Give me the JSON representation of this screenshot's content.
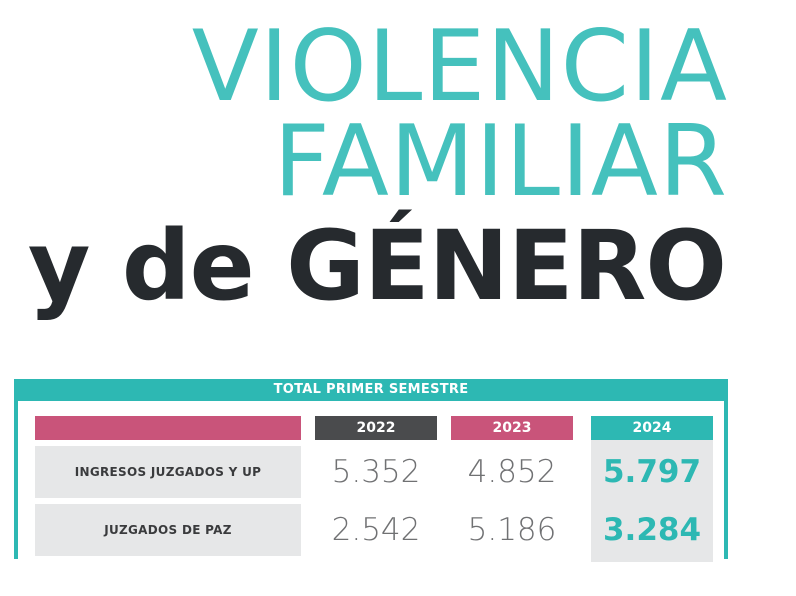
{
  "title": {
    "line1": "VIOLENCIA",
    "line2": "FAMILIAR",
    "line3": "y de GÉNERO"
  },
  "table": {
    "header": "TOTAL PRIMER SEMESTRE",
    "years": [
      "2022",
      "2023",
      "2024"
    ],
    "rows": [
      {
        "label": "INGRESOS JUZGADOS Y UP",
        "values": [
          "5.352",
          "4.852",
          "5.797"
        ]
      },
      {
        "label": "JUZGADOS DE PAZ",
        "values": [
          "2.542",
          "5.186",
          "3.284"
        ]
      }
    ]
  },
  "colors": {
    "teal": "#45c1bd",
    "teal_dark": "#2db8b3",
    "pink": "#c9547a",
    "dark_gray": "#4a4b4d",
    "title_dark": "#262a2e"
  }
}
